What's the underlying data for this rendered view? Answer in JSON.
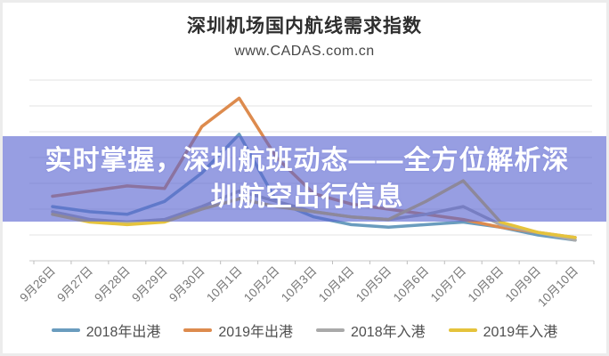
{
  "header": {
    "title": "深圳机场国内航线需求指数",
    "subtitle": "www.CADAS.com.cn"
  },
  "overlay": {
    "line1": "实时掌握，深圳航班动态——全方位解析深",
    "line2": "圳航空出行信息",
    "full_text": "实时掌握，深圳航班动态——全方位解析深圳航空出行信息",
    "band_color": "rgba(91,101,209,0.63)"
  },
  "chart_data": {
    "type": "line",
    "title": "深圳机场国内航线需求指数",
    "subtitle": "www.CADAS.com.cn",
    "categories": [
      "9月26日",
      "9月27日",
      "9月28日",
      "9月29日",
      "9月30日",
      "10月1日",
      "10月2日",
      "10月3日",
      "10月4日",
      "10月5日",
      "10月6日",
      "10月7日",
      "10月8日",
      "10月9日",
      "10月10日"
    ],
    "series": [
      {
        "name": "2018年出港",
        "color": "#6a9cbe",
        "values": [
          2.1,
          1.9,
          1.8,
          2.3,
          3.4,
          4.9,
          2.3,
          1.7,
          1.4,
          1.3,
          1.4,
          1.5,
          1.3,
          1.0,
          0.8
        ]
      },
      {
        "name": "2019年出港",
        "color": "#dd8b4e",
        "values": [
          2.5,
          2.7,
          2.9,
          2.8,
          5.2,
          6.3,
          4.0,
          2.6,
          2.2,
          2.0,
          1.8,
          1.6,
          1.3,
          1.1,
          0.9
        ]
      },
      {
        "name": "2018年入港",
        "color": "#a9a9a9",
        "values": [
          1.9,
          1.6,
          1.5,
          1.6,
          2.1,
          2.7,
          2.3,
          1.9,
          1.7,
          1.6,
          1.8,
          2.1,
          1.4,
          1.1,
          0.8
        ]
      },
      {
        "name": "2019年入港",
        "color": "#e5c33c",
        "values": [
          1.8,
          1.5,
          1.4,
          1.5,
          2.0,
          2.4,
          2.1,
          1.9,
          1.7,
          1.6,
          2.3,
          3.1,
          1.5,
          1.1,
          0.9
        ]
      }
    ],
    "xlabel": "",
    "ylabel": "",
    "ylim": [
      0,
      7
    ],
    "grid": true,
    "legend_position": "bottom",
    "x_axis_label_rotation": -45
  }
}
